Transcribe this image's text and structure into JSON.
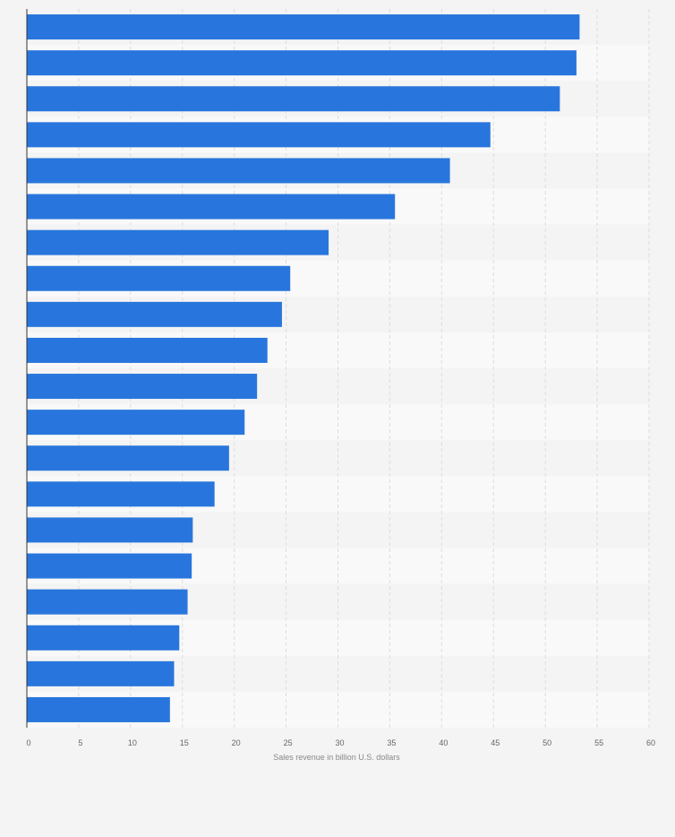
{
  "chart_data": {
    "type": "bar",
    "orientation": "horizontal",
    "title": "",
    "xlabel": "Sales revenue in billion U.S. dollars",
    "ylabel": "",
    "xlim": [
      0,
      60
    ],
    "x_ticks": [
      "0",
      "5",
      "10",
      "15",
      "20",
      "25",
      "30",
      "35",
      "40",
      "45",
      "50",
      "55",
      "60"
    ],
    "grid": true,
    "legend": "none",
    "bar_color": "#2876dd",
    "band_colors": [
      "#f4f4f4",
      "#f9f9f9"
    ],
    "gridline_color": "#dddddd",
    "axis_color": "#333333",
    "values": [
      53.3,
      53.0,
      51.4,
      44.7,
      40.8,
      35.5,
      29.1,
      25.4,
      24.6,
      23.2,
      22.2,
      21.0,
      19.5,
      18.1,
      16.0,
      15.9,
      15.5,
      14.7,
      14.2,
      13.8
    ]
  }
}
